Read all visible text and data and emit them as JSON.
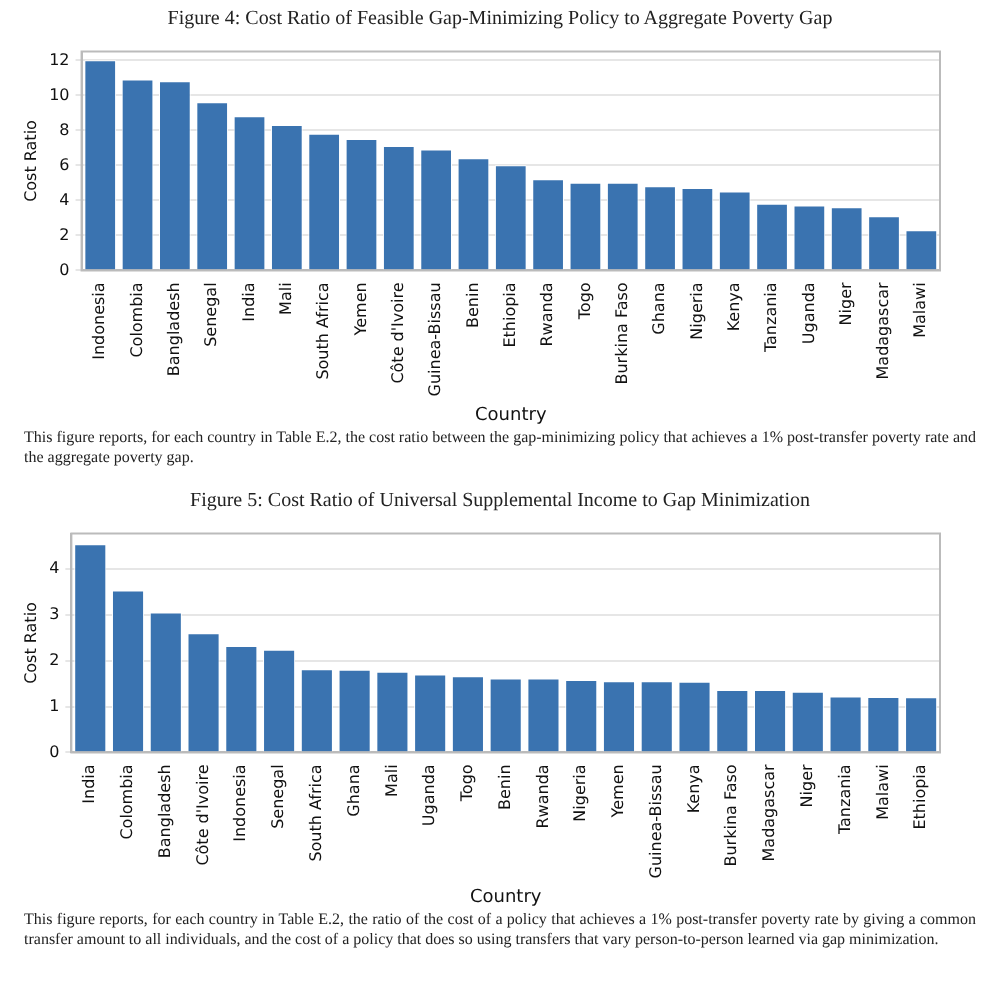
{
  "chart_data": [
    {
      "type": "bar",
      "title": "Figure 4: Cost Ratio of Feasible Gap-Minimizing Policy to Aggregate Poverty Gap",
      "xlabel": "Country",
      "ylabel": "Cost Ratio",
      "categories": [
        "Indonesia",
        "Colombia",
        "Bangladesh",
        "Senegal",
        "India",
        "Mali",
        "South Africa",
        "Yemen",
        "Côte d'Ivoire",
        "Guinea-Bissau",
        "Benin",
        "Ethiopia",
        "Rwanda",
        "Togo",
        "Burkina Faso",
        "Ghana",
        "Nigeria",
        "Kenya",
        "Tanzania",
        "Uganda",
        "Niger",
        "Madagascar",
        "Malawi"
      ],
      "values": [
        12.0,
        10.9,
        10.8,
        9.6,
        8.8,
        8.3,
        7.8,
        7.5,
        7.1,
        6.9,
        6.4,
        6.0,
        5.2,
        5.0,
        5.0,
        4.8,
        4.7,
        4.5,
        3.8,
        3.7,
        3.6,
        3.1,
        2.3
      ],
      "color": "#3a73b0",
      "ylim": [
        0,
        12.5
      ],
      "yticks": [
        0,
        2,
        4,
        6,
        8,
        10,
        12
      ],
      "grid": "y",
      "annotations": [
        "This figure reports, for each country in Table E.2, the cost ratio between the gap-minimizing policy that achieves a 1% post-transfer poverty rate and the aggregate poverty gap."
      ]
    },
    {
      "type": "bar",
      "title": "Figure 5: Cost Ratio of Universal Supplemental Income to Gap Minimization",
      "xlabel": "Country",
      "ylabel": "Cost Ratio",
      "categories": [
        "India",
        "Colombia",
        "Bangladesh",
        "Côte d'Ivoire",
        "Indonesia",
        "Senegal",
        "South Africa",
        "Ghana",
        "Mali",
        "Uganda",
        "Togo",
        "Benin",
        "Rwanda",
        "Nigeria",
        "Yemen",
        "Guinea-Bissau",
        "Kenya",
        "Burkina Faso",
        "Madagascar",
        "Niger",
        "Tanzania",
        "Malawi",
        "Ethiopia"
      ],
      "values": [
        4.54,
        3.53,
        3.05,
        2.6,
        2.32,
        2.24,
        1.81,
        1.8,
        1.76,
        1.7,
        1.66,
        1.61,
        1.61,
        1.58,
        1.55,
        1.55,
        1.54,
        1.36,
        1.36,
        1.32,
        1.22,
        1.21,
        1.2
      ],
      "color": "#3a73b0",
      "ylim": [
        0,
        4.77
      ],
      "yticks": [
        0,
        1,
        2,
        3,
        4
      ],
      "grid": "y",
      "annotations": [
        "This figure reports, for each country in Table E.2, the ratio of the cost of a policy that achieves a 1% post-transfer poverty rate by giving a common transfer amount to all individuals, and the cost of a policy that does so using transfers that vary person-to-person learned via gap minimization."
      ]
    }
  ]
}
